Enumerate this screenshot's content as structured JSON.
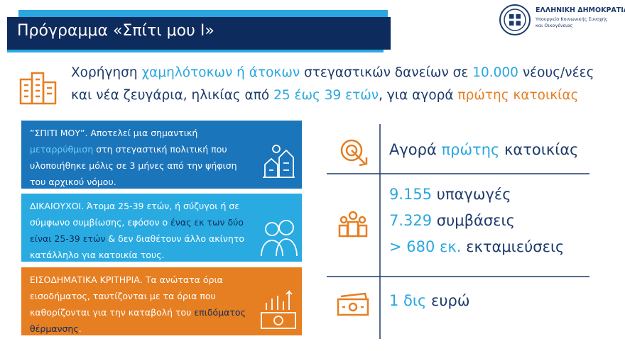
{
  "header": {
    "title": "Πρόγραμμα «Σπίτι μου Ι»",
    "logo_title": "ΕΛΛΗΝΙΚΗ ΔΗΜΟΚΡΑΤΙΑ",
    "logo_line_1": "Υπουργείο Κοινωνικής Συνοχής",
    "logo_line_2": "και Οικογένειας"
  },
  "intro": {
    "line_1": [
      {
        "text": "Χορήγηση ",
        "color": "#1c3a6b"
      },
      {
        "text": "χαμηλότοκων ή άτοκων",
        "color": "#2aa7df"
      },
      {
        "text": " στεγαστικών δανείων σε ",
        "color": "#1c3a6b"
      },
      {
        "text": "10.000",
        "color": "#2aa7df"
      },
      {
        "text": " νέους/νέες",
        "color": "#1c3a6b"
      }
    ],
    "line_2": [
      {
        "text": "και νέα ζευγάρια, ηλικίας από ",
        "color": "#1c3a6b"
      },
      {
        "text": "25 έως 39 ετών",
        "color": "#2aa7df"
      },
      {
        "text": ", για αγορά ",
        "color": "#1c3a6b"
      },
      {
        "text": "πρώτης κατοικίας",
        "color": "#e67e22"
      }
    ]
  },
  "panels": [
    {
      "background": "#1b75bb",
      "segments": [
        {
          "text": "”ΣΠΙΤΙ ΜΟΥ”. Αποτελεί μια σημαντική ",
          "color": "#ffffff"
        },
        {
          "text": "μεταρρύθμιση",
          "color": "#6dd0f7"
        },
        {
          "text": " στη στεγαστική πολιτική που υλοποιήθηκε μόλις σε 3 μήνες από την ψήφιση του αρχικού νόμου.",
          "color": "#ffffff"
        }
      ]
    },
    {
      "background": "#29abe2",
      "segments": [
        {
          "text": "ΔΙΚΑΙΟΥΧΟΙ. Άτομα 25-39 ετών, ή σύζυγοι ή σε σύμφωνο συμβίωσης, εφόσον ο ",
          "color": "#ffffff"
        },
        {
          "text": "ένας εκ των δύο είναι 25-39 ετών",
          "color": "#0d2b5c"
        },
        {
          "text": " & δεν διαθέτουν άλλο ακίνητο κατάλληλο για κατοικία τους.",
          "color": "#ffffff"
        }
      ]
    },
    {
      "background": "#e67e22",
      "segments": [
        {
          "text": "ΕΙΣΟΔΗΜΑΤΙΚΑ ΚΡΙΤΗΡΙΑ. Τα ανώτατα όρια εισοδήματος, ταυτίζονται με τα όρια που καθορίζονται για την καταβολή του ",
          "color": "#ffffff"
        },
        {
          "text": "επιδόματος θέρμανσης",
          "color": "#0d2b5c"
        },
        {
          "text": ".",
          "color": "#ffffff"
        }
      ]
    }
  ],
  "highlights": {
    "purchase": [
      {
        "text": "Αγορά ",
        "color": "#1c3a6b"
      },
      {
        "text": "πρώτης",
        "color": "#2aa7df"
      },
      {
        "text": " κατοικίας",
        "color": "#1c3a6b"
      }
    ],
    "stats": [
      [
        {
          "text": "9.155",
          "color": "#2aa7df"
        },
        {
          "text": " υπαγωγές",
          "color": "#1c3a6b"
        }
      ],
      [
        {
          "text": "7.329",
          "color": "#2aa7df"
        },
        {
          "text": " συμβάσεις",
          "color": "#1c3a6b"
        }
      ],
      [
        {
          "text": "> 680 εκ.",
          "color": "#2aa7df"
        },
        {
          "text": " εκταμιεύσεις",
          "color": "#1c3a6b"
        }
      ]
    ],
    "amount": [
      {
        "text": "1 δις",
        "color": "#2aa7df"
      },
      {
        "text": " ευρώ",
        "color": "#1c3a6b"
      }
    ]
  }
}
